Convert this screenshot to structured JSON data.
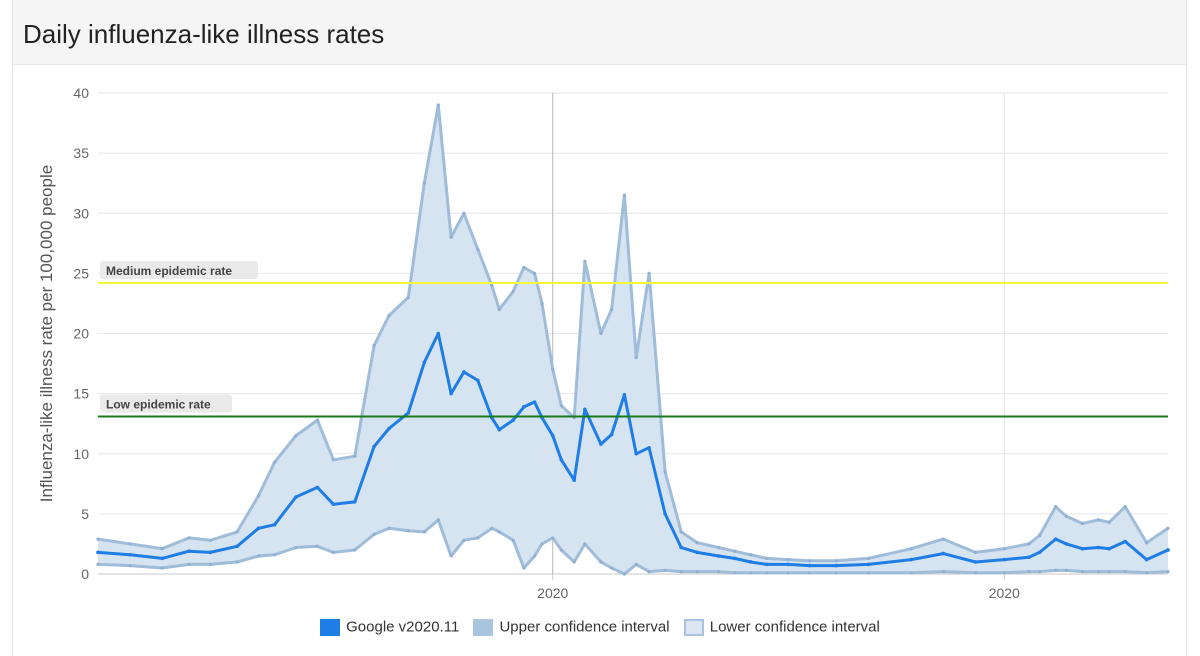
{
  "header": {
    "title": "Daily influenza-like illness rates"
  },
  "chart_data": {
    "type": "line",
    "title": "Daily influenza-like illness rates",
    "xlabel": "",
    "ylabel": "Influenza-like illness rate per 100,000 people",
    "ylim": [
      0,
      40
    ],
    "xlim": [
      0,
      1000
    ],
    "yticks": [
      0,
      5,
      10,
      15,
      20,
      25,
      30,
      35,
      40
    ],
    "xticks": [
      {
        "label": "2020",
        "x": 425
      },
      {
        "label": "2020",
        "x": 847
      }
    ],
    "grid": true,
    "legend_position": "bottom",
    "thresholds": [
      {
        "label": "Medium epidemic rate",
        "value": 24.2,
        "color": "#f5f53a"
      },
      {
        "label": "Low epidemic rate",
        "value": 13.1,
        "color": "#1a7a1a"
      }
    ],
    "x": [
      0,
      30,
      60,
      85,
      105,
      130,
      150,
      165,
      185,
      205,
      220,
      240,
      258,
      272,
      290,
      305,
      318,
      330,
      342,
      355,
      368,
      375,
      388,
      398,
      408,
      415,
      425,
      433,
      445,
      455,
      470,
      480,
      492,
      503,
      515,
      530,
      545,
      560,
      580,
      595,
      610,
      625,
      645,
      665,
      690,
      720,
      760,
      790,
      820,
      847,
      870,
      880,
      895,
      905,
      920,
      935,
      945,
      960,
      980,
      1000
    ],
    "series": [
      {
        "name": "Google v2020.11",
        "color": "#1f7de6",
        "values": [
          1.8,
          1.6,
          1.3,
          1.9,
          1.8,
          2.3,
          3.8,
          4.1,
          6.4,
          7.2,
          5.8,
          6.0,
          10.6,
          12.1,
          13.4,
          17.6,
          20.0,
          15.0,
          16.8,
          16.1,
          13.0,
          12.0,
          12.8,
          13.9,
          14.3,
          13.0,
          11.5,
          9.5,
          7.8,
          13.7,
          10.8,
          11.6,
          14.9,
          10.0,
          10.5,
          5.0,
          2.2,
          1.8,
          1.5,
          1.3,
          1.0,
          0.8,
          0.8,
          0.7,
          0.7,
          0.8,
          1.2,
          1.7,
          1.0,
          1.2,
          1.4,
          1.8,
          2.9,
          2.5,
          2.1,
          2.2,
          2.1,
          2.7,
          1.2,
          2.0
        ]
      },
      {
        "name": "Upper confidence interval",
        "color": "#9fbcd9",
        "values": [
          2.9,
          2.5,
          2.1,
          3.0,
          2.8,
          3.5,
          6.5,
          9.3,
          11.5,
          12.8,
          9.5,
          9.8,
          19.0,
          21.5,
          23.0,
          32.5,
          39.0,
          28.0,
          30.0,
          27.0,
          24.0,
          22.0,
          23.5,
          25.5,
          25.0,
          22.5,
          17.0,
          14.0,
          13.0,
          26.0,
          20.0,
          22.0,
          31.5,
          18.0,
          25.0,
          8.5,
          3.5,
          2.6,
          2.2,
          1.9,
          1.6,
          1.3,
          1.2,
          1.1,
          1.1,
          1.3,
          2.1,
          2.9,
          1.8,
          2.1,
          2.5,
          3.2,
          5.6,
          4.8,
          4.2,
          4.5,
          4.3,
          5.6,
          2.6,
          3.8
        ]
      },
      {
        "name": "Lower confidence interval",
        "color": "#9fbcd9",
        "values": [
          0.8,
          0.7,
          0.5,
          0.8,
          0.8,
          1.0,
          1.5,
          1.6,
          2.2,
          2.3,
          1.8,
          2.0,
          3.3,
          3.8,
          3.6,
          3.5,
          4.5,
          1.5,
          2.8,
          3.0,
          3.8,
          3.5,
          2.8,
          0.5,
          1.5,
          2.5,
          3.0,
          2.0,
          1.0,
          2.5,
          1.0,
          0.5,
          0.0,
          0.8,
          0.2,
          0.3,
          0.2,
          0.2,
          0.2,
          0.1,
          0.1,
          0.1,
          0.1,
          0.1,
          0.1,
          0.1,
          0.1,
          0.2,
          0.1,
          0.1,
          0.2,
          0.2,
          0.3,
          0.3,
          0.2,
          0.2,
          0.2,
          0.2,
          0.1,
          0.2
        ]
      }
    ]
  }
}
